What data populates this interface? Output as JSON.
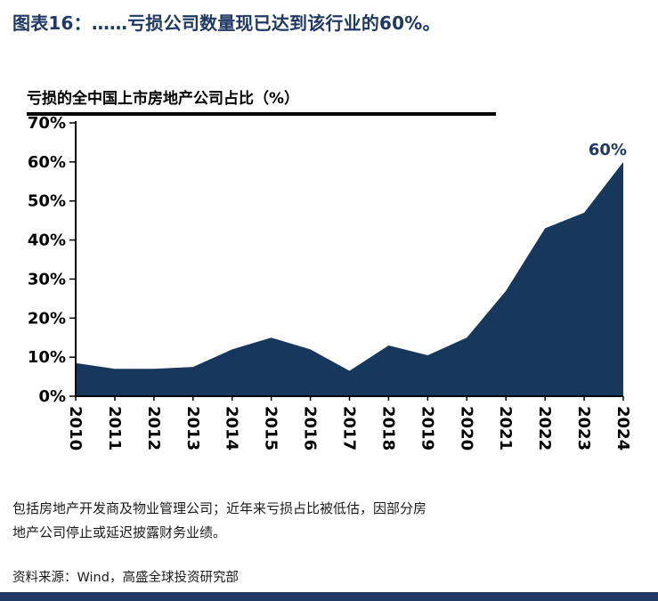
{
  "header": {
    "title": "图表16：……亏损公司数量现已达到该行业的60%。"
  },
  "chart": {
    "title": "亏损的全中国上市房地产公司占比（%）"
  },
  "chart_data": {
    "type": "area",
    "title": "亏损的全中国上市房地产公司占比（%）",
    "categories": [
      "2010",
      "2011",
      "2012",
      "2013",
      "2014",
      "2015",
      "2016",
      "2017",
      "2018",
      "2019",
      "2020",
      "2021",
      "2022",
      "2023",
      "2024"
    ],
    "values": [
      8.5,
      7,
      7,
      7.5,
      12,
      15,
      12,
      6.5,
      13,
      10.5,
      15,
      27,
      43,
      47,
      60
    ],
    "ylim": [
      0,
      70
    ],
    "ytick_step": 10,
    "ytick_suffix": "%",
    "xlabel": "",
    "ylabel": "",
    "grid": false,
    "legend": "none",
    "annotation": "60%",
    "area_color": "#17375C",
    "annotation_color": "#1F3864",
    "axis_color": "#000000"
  },
  "footnotes": {
    "lines": [
      "包括房地产开发商及物业管理公司；近年来亏损占比被低估，因部分房",
      "地产公司停止或延迟披露财务业绩。"
    ]
  },
  "source": {
    "text": "资料来源：Wind，高盛全球投资研究部"
  },
  "colors": {
    "navy": "#1F3864",
    "bottom_bar": "#1F3864"
  }
}
